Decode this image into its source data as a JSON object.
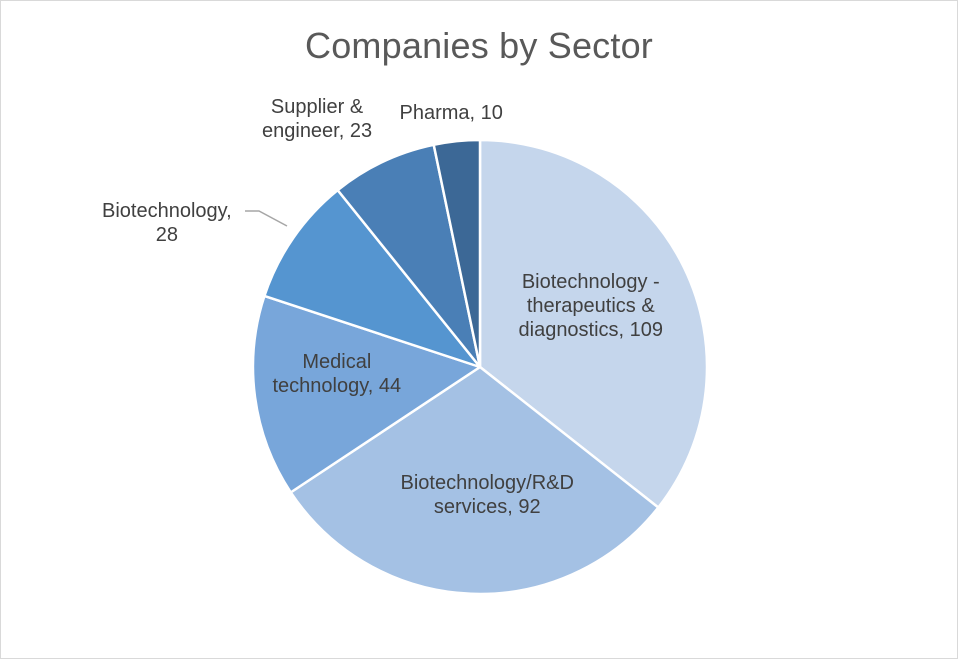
{
  "chart_data": {
    "type": "pie",
    "title": "Companies by Sector",
    "slices": [
      {
        "name": "Biotechnology - therapeutics & diagnostics",
        "value": 109,
        "color": "#c5d6ec",
        "label_lines": [
          "Biotechnology -",
          "therapeutics &",
          "diagnostics, 109"
        ]
      },
      {
        "name": "Biotechnology/R&D services",
        "value": 92,
        "color": "#a4c1e4",
        "label_lines": [
          "Biotechnology/R&D",
          "services, 92"
        ]
      },
      {
        "name": "Medical technology",
        "value": 44,
        "color": "#78a6da",
        "label_lines": [
          "Medical",
          "technology, 44"
        ]
      },
      {
        "name": "Biotechnology",
        "value": 28,
        "color": "#5595d0",
        "label_lines": [
          "Biotechnology,",
          "28"
        ]
      },
      {
        "name": "Supplier & engineer",
        "value": 23,
        "color": "#4a7fb6",
        "label_lines": [
          "Supplier &",
          "engineer, 23"
        ]
      },
      {
        "name": "Pharma",
        "value": 10,
        "color": "#3c6896",
        "label_lines": [
          "Pharma, 10"
        ]
      }
    ],
    "start_angle_deg": 0,
    "direction": "clockwise",
    "slice_border_color": "#ffffff",
    "legend": "none"
  }
}
